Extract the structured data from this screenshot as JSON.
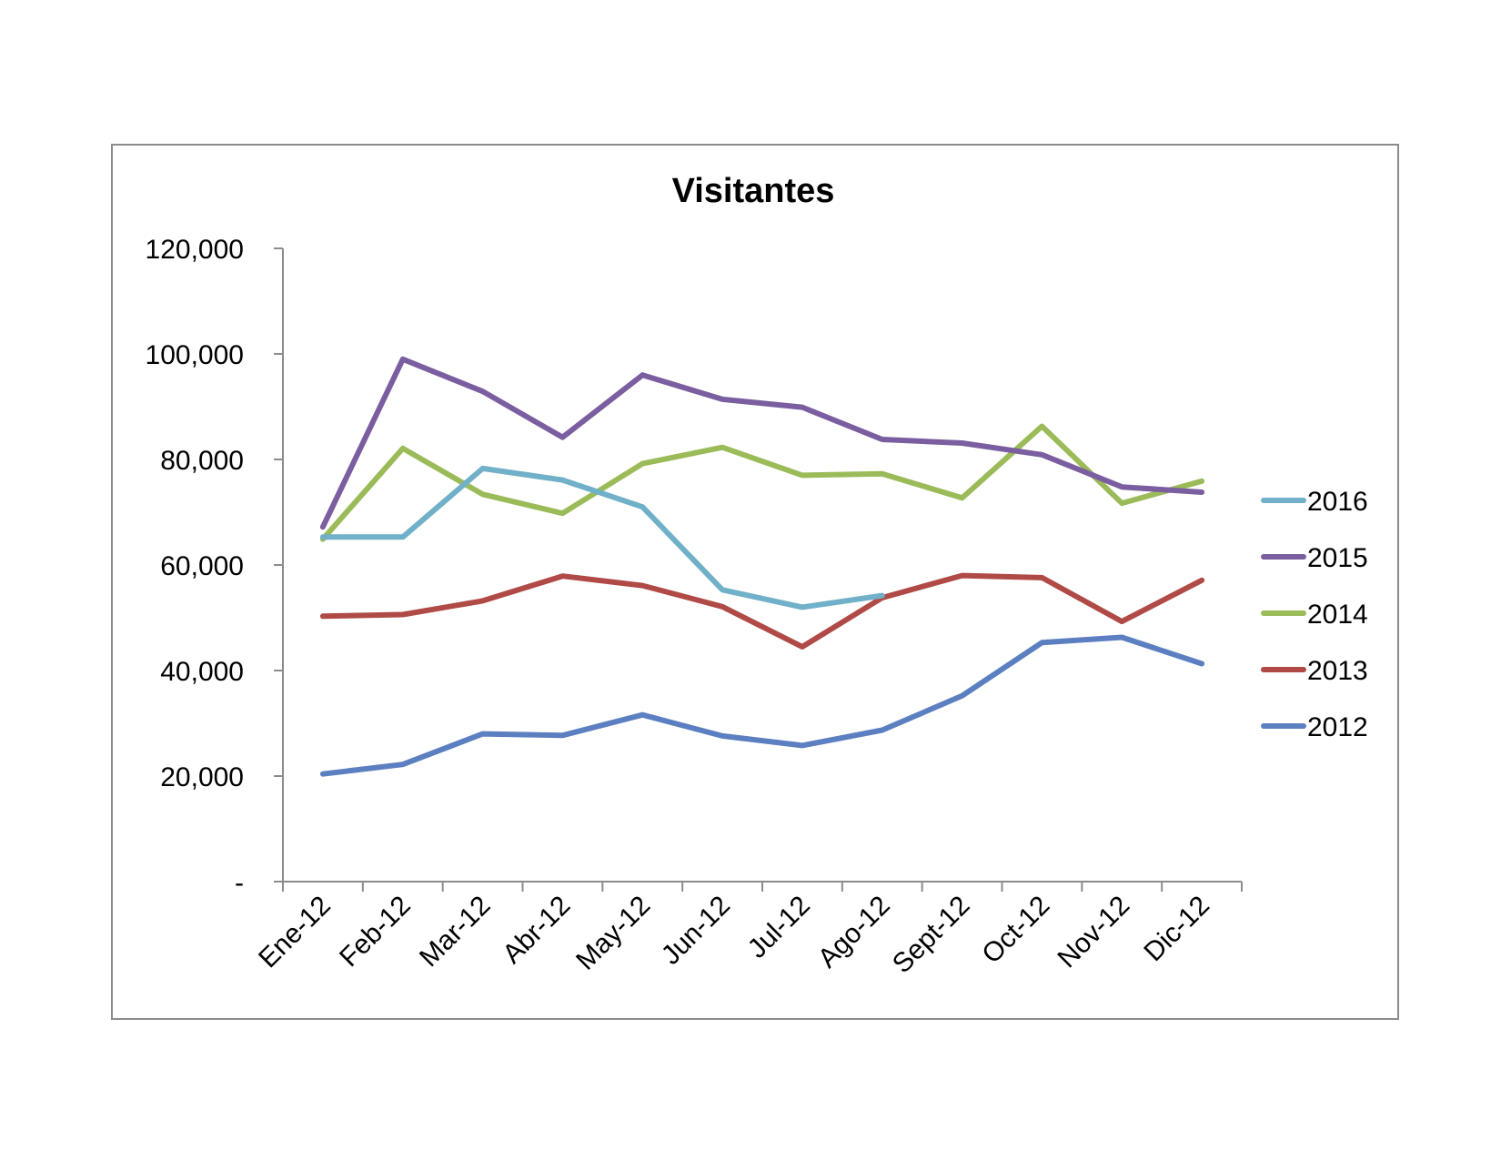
{
  "chart_data": {
    "type": "line",
    "title": "Visitantes",
    "xlabel": "",
    "ylabel": "",
    "categories": [
      "Ene-12",
      "Feb-12",
      "Mar-12",
      "Abr-12",
      "May-12",
      "Jun-12",
      "Jul-12",
      "Ago-12",
      "Sept-12",
      "Oct-12",
      "Nov-12",
      "Dic-12"
    ],
    "ylim": [
      0,
      120000
    ],
    "yticks": [
      0,
      20000,
      40000,
      60000,
      80000,
      100000,
      120000
    ],
    "ytick_labels": [
      "-",
      "20,000",
      "40,000",
      "60,000",
      "80,000",
      "100,000",
      "120,000"
    ],
    "grid": false,
    "legend_position": "right",
    "series": [
      {
        "name": "2016",
        "color": "#70b0c8",
        "values": [
          65300,
          65300,
          78300,
          76100,
          71000,
          55300,
          52000,
          54200,
          null,
          null,
          null,
          null
        ]
      },
      {
        "name": "2015",
        "color": "#7a5ea0",
        "values": [
          67200,
          99000,
          92900,
          84200,
          96000,
          91400,
          89900,
          83800,
          83100,
          80900,
          74800,
          73800
        ]
      },
      {
        "name": "2014",
        "color": "#9bbb59",
        "values": [
          64900,
          82100,
          73400,
          69800,
          79200,
          82300,
          77000,
          77300,
          72700,
          86300,
          71700,
          75900
        ]
      },
      {
        "name": "2013",
        "color": "#b04a46",
        "values": [
          50300,
          50600,
          53200,
          57900,
          56100,
          52100,
          44500,
          53800,
          58000,
          57600,
          49300,
          57100
        ]
      },
      {
        "name": "2012",
        "color": "#5b7fc0",
        "values": [
          20400,
          22200,
          28000,
          27700,
          31600,
          27600,
          25800,
          28700,
          35200,
          45300,
          46300,
          41300
        ]
      }
    ]
  }
}
